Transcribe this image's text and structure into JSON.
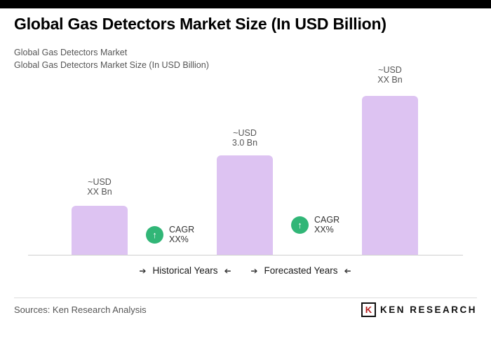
{
  "header": {
    "title": "Global Gas Detectors Market Size (In USD Billion)",
    "subtitle1": "Global Gas Detectors Market",
    "subtitle2": "Global Gas Detectors Market Size (In USD Billion)"
  },
  "chart_data": {
    "type": "bar",
    "title": "Global Gas Detectors Market Size (In USD Billion)",
    "categories": [
      "Historical Years",
      "Forecasted Years"
    ],
    "bars": [
      {
        "label_line1": "~USD",
        "label_line2": "XX Bn",
        "value_est_usd_bn": 1.5
      },
      {
        "label_line1": "~USD",
        "label_line2": "3.0 Bn",
        "value_est_usd_bn": 3.0
      },
      {
        "label_line1": "~USD",
        "label_line2": "XX Bn",
        "value_est_usd_bn": 4.8
      }
    ],
    "cagr_badges": [
      {
        "line1": "CAGR",
        "line2": "XX%"
      },
      {
        "line1": "CAGR",
        "line2": "XX%"
      }
    ],
    "x_axis_labels": [
      {
        "text": "Historical Years"
      },
      {
        "text": "Forecasted Years"
      }
    ],
    "ylim": [
      0,
      5
    ],
    "grid": false,
    "legend": "none"
  },
  "icons": {
    "up_arrow": "↑",
    "axis_arrow": "➔"
  },
  "colors": {
    "bar_fill": "#ddc3f2",
    "badge_green": "#31b677",
    "top_bar": "#000000",
    "logo_red": "#b71c1c"
  },
  "footer": {
    "sources": "Sources: Ken Research Analysis",
    "logo_text": "KEN RESEARCH",
    "logo_letter": "K"
  }
}
